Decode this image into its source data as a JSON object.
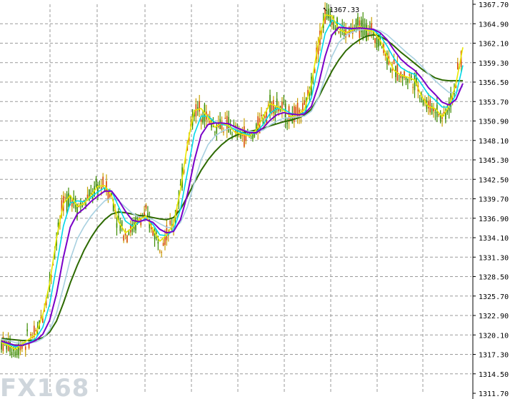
{
  "chart_data": {
    "type": "candlestick",
    "title": "",
    "xlabel": "",
    "ylabel": "",
    "ylim": [
      1311.7,
      1367.7
    ],
    "y_ticks": [
      "1367.70",
      "1364.90",
      "1362.10",
      "1359.30",
      "1356.50",
      "1353.70",
      "1350.90",
      "1348.10",
      "1345.30",
      "1342.50",
      "1339.70",
      "1336.90",
      "1334.10",
      "1331.30",
      "1328.50",
      "1325.70",
      "1322.90",
      "1320.10",
      "1317.30",
      "1314.50",
      "1311.70"
    ],
    "grid": true,
    "peak_annotation": {
      "label": "1367.33",
      "value": 1367.33
    },
    "colors": {
      "up_candle": "#c8a000",
      "down_candle": "#3c8c00",
      "ma_fast": "#e8e800",
      "ma_cyan": "#00d8e8",
      "ma_purple": "#7a00c8",
      "ma_lightblue": "#a8d0e0",
      "ma_slow": "#2d6a00",
      "grid": "#9a9a9a"
    },
    "series": [
      {
        "name": "",
        "color": "#e8e800",
        "values": [
          1319,
          1318.6,
          1318,
          1318.8,
          1319.5,
          1320.2,
          1323,
          1327.5,
          1334,
          1339,
          1340.2,
          1338.6,
          1339,
          1340.2,
          1341.5,
          1341.6,
          1340.1,
          1336.4,
          1334.8,
          1335.5,
          1336.8,
          1337.2,
          1335.3,
          1333.6,
          1334.5,
          1336.1,
          1341,
          1347.5,
          1352.4,
          1352.7,
          1351.4,
          1350,
          1350.6,
          1350.2,
          1349.2,
          1349,
          1348.7,
          1349.6,
          1351.5,
          1353.4,
          1353,
          1352.4,
          1351.5,
          1351.8,
          1352.5,
          1356.2,
          1362,
          1366.2,
          1366,
          1364.1,
          1363.6,
          1364,
          1364.5,
          1364,
          1363.8,
          1362.5,
          1360.2,
          1358.2,
          1357.5,
          1357.2,
          1356.8,
          1354.5,
          1353,
          1352.7,
          1351.5,
          1353,
          1356.3,
          1361.5
        ]
      },
      {
        "name": "",
        "color": "#00d8e8",
        "values": [
          1319.1,
          1318.8,
          1318.4,
          1318.6,
          1319,
          1319.6,
          1321.2,
          1324.5,
          1330,
          1335.8,
          1339.1,
          1339.4,
          1339.3,
          1339.9,
          1340.7,
          1341.3,
          1340.8,
          1338.6,
          1336.5,
          1335.8,
          1336.3,
          1336.9,
          1336,
          1334.5,
          1334.4,
          1335.2,
          1338.2,
          1343.5,
          1349,
          1351.6,
          1351.6,
          1350.7,
          1350.4,
          1350.2,
          1349.6,
          1349.2,
          1348.9,
          1349.2,
          1350.4,
          1352,
          1352.7,
          1352.6,
          1352,
          1351.8,
          1352.1,
          1354.2,
          1358.8,
          1363.5,
          1365.4,
          1364.9,
          1364.2,
          1364.1,
          1364.3,
          1364.2,
          1364,
          1363.2,
          1361.7,
          1359.9,
          1358.6,
          1358,
          1357.6,
          1356.2,
          1354.7,
          1353.9,
          1352.9,
          1352.9,
          1354.7,
          1358.9
        ]
      },
      {
        "name": "",
        "color": "#7a00c8",
        "values": [
          1319.2,
          1318.9,
          1318.6,
          1318.6,
          1318.9,
          1319.3,
          1320.2,
          1322.2,
          1326,
          1331.3,
          1335.6,
          1337.5,
          1338.3,
          1339.3,
          1340.1,
          1340.8,
          1340.8,
          1339.5,
          1337.9,
          1336.6,
          1336.4,
          1336.7,
          1336.3,
          1335.3,
          1334.8,
          1335,
          1336.7,
          1340.3,
          1345.2,
          1348.9,
          1350.4,
          1350.6,
          1350.6,
          1350.5,
          1350,
          1349.6,
          1349.2,
          1349.2,
          1349.9,
          1351,
          1351.8,
          1352.1,
          1351.9,
          1351.8,
          1351.9,
          1353,
          1356,
          1360.2,
          1363.3,
          1364.4,
          1364.3,
          1364.2,
          1364.3,
          1364.2,
          1364.1,
          1363.6,
          1362.6,
          1361.1,
          1359.8,
          1358.9,
          1358.2,
          1357.1,
          1355.7,
          1354.7,
          1353.6,
          1353.2,
          1354,
          1356.3
        ]
      },
      {
        "name": "",
        "color": "#a8d0e0",
        "values": [
          1319.5,
          1319.3,
          1319,
          1318.9,
          1318.9,
          1319.1,
          1319.6,
          1320.8,
          1323.2,
          1327,
          1331,
          1333.9,
          1335.7,
          1337.2,
          1338.4,
          1339.4,
          1339.8,
          1339.4,
          1338.5,
          1337.6,
          1337.1,
          1337,
          1336.7,
          1336.1,
          1335.6,
          1335.5,
          1336.3,
          1338.5,
          1342,
          1345.3,
          1347.5,
          1348.7,
          1349.4,
          1349.8,
          1349.8,
          1349.6,
          1349.4,
          1349.3,
          1349.6,
          1350.3,
          1350.9,
          1351.3,
          1351.4,
          1351.5,
          1351.6,
          1352.3,
          1354.2,
          1357.2,
          1360.2,
          1362.2,
          1363.2,
          1363.7,
          1364,
          1364.1,
          1364.1,
          1363.9,
          1363.3,
          1362.4,
          1361.5,
          1360.6,
          1359.8,
          1358.8,
          1357.7,
          1356.7,
          1355.8,
          1355,
          1355,
          1355.9
        ]
      },
      {
        "name": "",
        "color": "#2d6a00",
        "values": [
          1319.6,
          1319.5,
          1319.4,
          1319.3,
          1319.3,
          1319.4,
          1319.7,
          1320.5,
          1322.1,
          1324.7,
          1327.6,
          1330.1,
          1332.3,
          1334.1,
          1335.6,
          1336.7,
          1337.5,
          1337.8,
          1337.7,
          1337.5,
          1337.3,
          1337.2,
          1337,
          1336.8,
          1336.7,
          1337,
          1338.2,
          1340,
          1342,
          1343.8,
          1345.3,
          1346.5,
          1347.5,
          1348.3,
          1348.8,
          1349.2,
          1349.4,
          1349.6,
          1349.8,
          1350.2,
          1350.5,
          1350.8,
          1351,
          1351.3,
          1351.7,
          1352.6,
          1354.2,
          1356.2,
          1358.1,
          1359.7,
          1361,
          1361.9,
          1362.6,
          1363.1,
          1363.3,
          1363.1,
          1362.5,
          1361.7,
          1360.8,
          1360,
          1359.2,
          1358.4,
          1357.7,
          1357.1,
          1356.8,
          1356.7,
          1356.7,
          1356.7
        ]
      }
    ]
  },
  "watermark": {
    "text": "FX168"
  }
}
